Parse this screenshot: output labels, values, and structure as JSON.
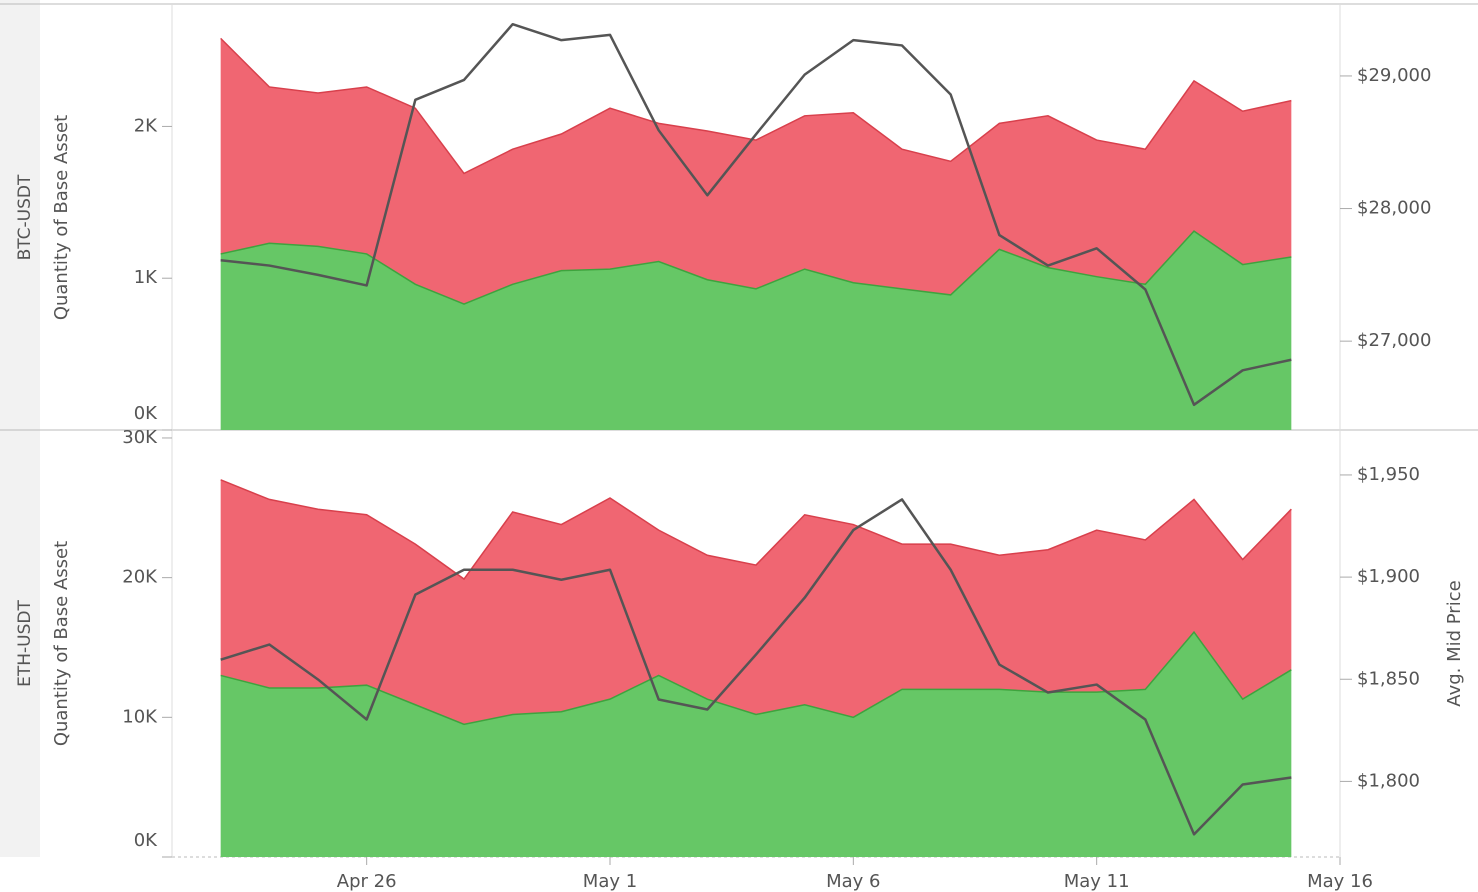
{
  "chart_data": [
    {
      "type": "area",
      "stacked": true,
      "row_label": "BTC-USDT",
      "y_label": "Quantity of Base Asset",
      "x": [
        "Apr 23",
        "Apr 24",
        "Apr 25",
        "Apr 26",
        "Apr 27",
        "Apr 28",
        "Apr 29",
        "Apr 30",
        "May 1",
        "May 2",
        "May 3",
        "May 4",
        "May 5",
        "May 6",
        "May 7",
        "May 8",
        "May 9",
        "May 10",
        "May 11",
        "May 12",
        "May 13",
        "May 14",
        "May 15"
      ],
      "xlim": [
        "Apr 22",
        "May 16"
      ],
      "ylim": [
        0,
        2800
      ],
      "yticks": [
        {
          "value": 0,
          "label": "0K"
        },
        {
          "value": 1000,
          "label": "1K"
        },
        {
          "value": 2000,
          "label": "2K"
        }
      ],
      "y2lim": [
        26330,
        29535
      ],
      "y2ticks": [
        {
          "value": 27000,
          "label": "$27,000"
        },
        {
          "value": 28000,
          "label": "$28,000"
        },
        {
          "value": 29000,
          "label": "$29,000"
        }
      ],
      "series": [
        {
          "color": "#66c766",
          "edge": "#3ea33e",
          "values": [
            1160,
            1230,
            1210,
            1160,
            960,
            830,
            960,
            1050,
            1060,
            1110,
            990,
            930,
            1060,
            970,
            930,
            890,
            1190,
            1070,
            1010,
            960,
            1310,
            1090,
            1140
          ]
        },
        {
          "color": "#f06672",
          "edge": "#d8404c",
          "values": [
            1420,
            1030,
            1010,
            1100,
            1160,
            860,
            890,
            900,
            1060,
            910,
            980,
            980,
            1010,
            1120,
            920,
            880,
            830,
            1000,
            900,
            890,
            990,
            1010,
            1030
          ]
        },
        {
          "type": "line",
          "axis": "y2",
          "color": "#555555",
          "values": [
            27610,
            27570,
            27500,
            27420,
            28820,
            28970,
            29390,
            29270,
            29310,
            28590,
            28100,
            28560,
            29010,
            29270,
            29230,
            28860,
            27800,
            27570,
            27700,
            27390,
            26520,
            26780,
            26860
          ]
        }
      ]
    },
    {
      "type": "area",
      "stacked": true,
      "row_label": "ETH-USDT",
      "y_label": "Quantity of Base Asset",
      "y2_label": "Avg. Mid Price",
      "x": [
        "Apr 23",
        "Apr 24",
        "Apr 25",
        "Apr 26",
        "Apr 27",
        "Apr 28",
        "Apr 29",
        "Apr 30",
        "May 1",
        "May 2",
        "May 3",
        "May 4",
        "May 5",
        "May 6",
        "May 7",
        "May 8",
        "May 9",
        "May 10",
        "May 11",
        "May 12",
        "May 13",
        "May 14",
        "May 15"
      ],
      "xlim": [
        "Apr 22",
        "May 16"
      ],
      "xticks": [
        "Apr 26",
        "May 1",
        "May 6",
        "May 11",
        "May 16"
      ],
      "ylim": [
        0,
        30570
      ],
      "yticks": [
        {
          "value": 0,
          "label": "0K"
        },
        {
          "value": 10000,
          "label": "10K"
        },
        {
          "value": 20000,
          "label": "20K"
        },
        {
          "value": 30000,
          "label": "30K"
        }
      ],
      "y2lim": [
        1763,
        1972
      ],
      "y2ticks": [
        {
          "value": 1800,
          "label": "$1,800"
        },
        {
          "value": 1850,
          "label": "$1,850"
        },
        {
          "value": 1900,
          "label": "$1,900"
        },
        {
          "value": 1950,
          "label": "$1,950"
        }
      ],
      "series": [
        {
          "color": "#66c766",
          "edge": "#3ea33e",
          "values": [
            13000,
            12100,
            12100,
            12300,
            10900,
            9500,
            10200,
            10400,
            11300,
            13000,
            11300,
            10200,
            10900,
            10000,
            12000,
            12000,
            12000,
            11800,
            11800,
            12000,
            16100,
            11300,
            13400
          ]
        },
        {
          "color": "#f06672",
          "edge": "#d8404c",
          "values": [
            14000,
            13500,
            12800,
            12200,
            11500,
            10400,
            14500,
            13400,
            14400,
            10400,
            10300,
            10700,
            13600,
            13800,
            10400,
            10400,
            9600,
            10200,
            11600,
            10700,
            9500,
            10000,
            11500
          ]
        },
        {
          "type": "line",
          "axis": "y2",
          "color": "#555555",
          "values": [
            1859.6,
            1867,
            1849.9,
            1830.3,
            1891.4,
            1903.6,
            1903.6,
            1898.7,
            1903.6,
            1840.1,
            1835.2,
            1862.1,
            1889.9,
            1923,
            1938,
            1903.6,
            1857.2,
            1843.5,
            1847.4,
            1830.3,
            1774.1,
            1798.5,
            1801.9
          ]
        }
      ]
    }
  ]
}
